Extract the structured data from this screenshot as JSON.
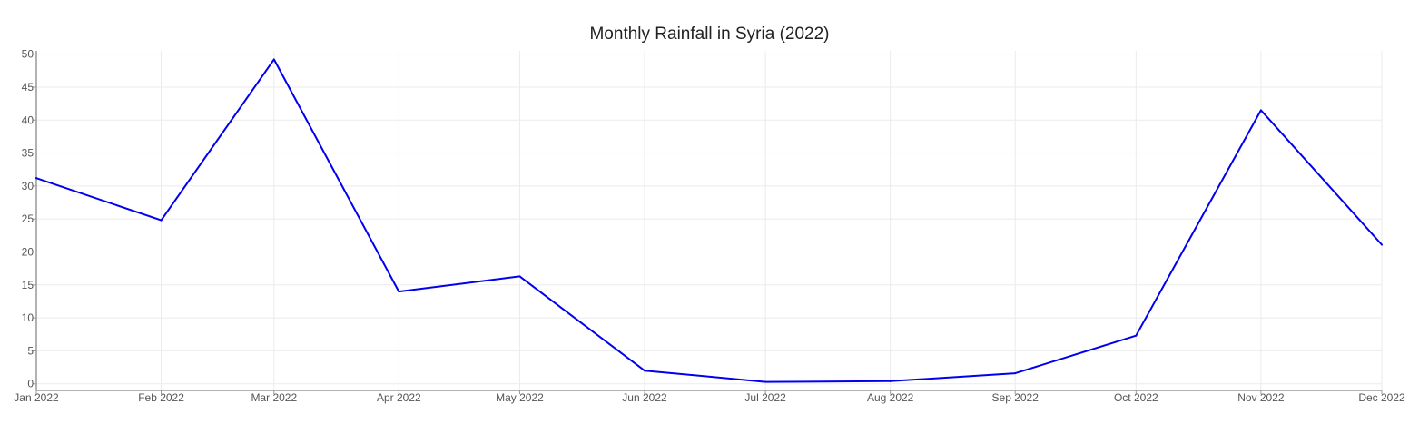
{
  "chart_data": {
    "type": "line",
    "title": "Monthly Rainfall in Syria (2022)",
    "xlabel": "",
    "ylabel": "",
    "categories": [
      "Jan 2022",
      "Feb 2022",
      "Mar 2022",
      "Apr 2022",
      "May 2022",
      "Jun 2022",
      "Jul 2022",
      "Aug 2022",
      "Sep 2022",
      "Oct 2022",
      "Nov 2022",
      "Dec 2022"
    ],
    "x": [
      "2022-01-01",
      "2022-02-01",
      "2022-03-01",
      "2022-04-01",
      "2022-05-01",
      "2022-06-01",
      "2022-07-01",
      "2022-08-01",
      "2022-09-01",
      "2022-10-01",
      "2022-11-01",
      "2022-12-01"
    ],
    "series": [
      {
        "color": "#0000ee",
        "values": [
          31.2,
          24.8,
          49.2,
          14.0,
          16.3,
          2.0,
          0.3,
          0.4,
          1.6,
          7.3,
          41.5,
          21.1
        ]
      }
    ],
    "yticks": [
      0,
      5,
      10,
      15,
      20,
      25,
      30,
      35,
      40,
      45,
      50
    ],
    "ylim": [
      -1,
      50.5
    ],
    "grid": true,
    "legend": "none"
  }
}
